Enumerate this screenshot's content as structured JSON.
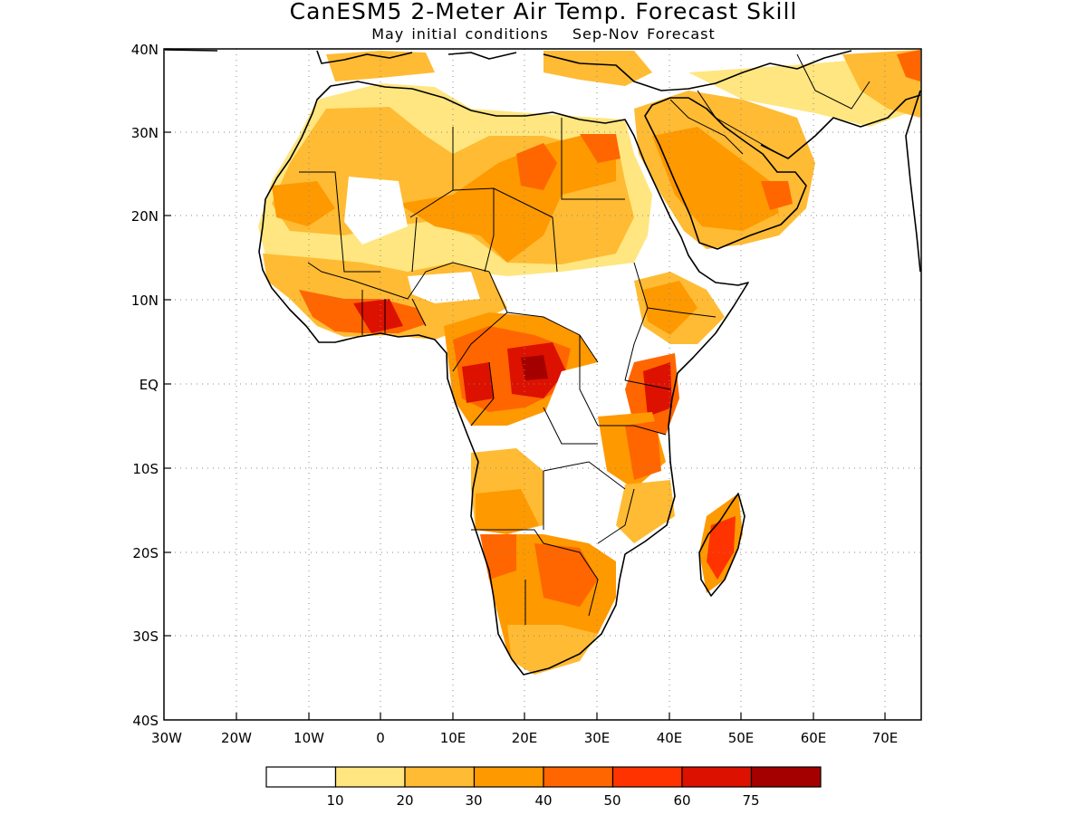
{
  "title": "CanESM5 2-Meter Air Temp. Forecast Skill",
  "subtitle": {
    "init": "May initial conditions",
    "forecast": "Sep-Nov Forecast"
  },
  "axes": {
    "lat_labels": [
      "40N",
      "30N",
      "20N",
      "10N",
      "EQ",
      "10S",
      "20S",
      "30S",
      "40S"
    ],
    "lon_labels": [
      "30W",
      "20W",
      "10W",
      "0",
      "10E",
      "20E",
      "30E",
      "40E",
      "50E",
      "60E",
      "70E"
    ],
    "lat_range": [
      -40,
      40
    ],
    "lon_range": [
      -30,
      75
    ],
    "grid": "dotted"
  },
  "colorbar": {
    "colors": [
      "#ffffff",
      "#ffe680",
      "#ffbb33",
      "#ff9900",
      "#ff6600",
      "#ff3300",
      "#dd1100",
      "#a50000"
    ],
    "tick_labels": [
      "10",
      "20",
      "30",
      "40",
      "50",
      "60",
      "75"
    ]
  }
}
